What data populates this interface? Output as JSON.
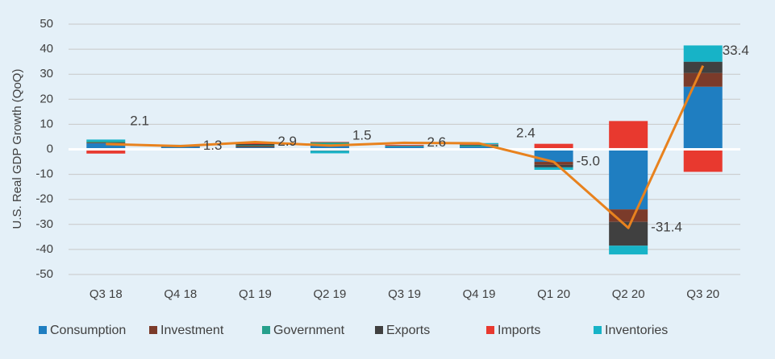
{
  "chart_data": {
    "type": "stacked-bar-line",
    "y_label": "U.S. Real GDP Growth (QoQ)",
    "categories": [
      "Q3 18",
      "Q4 18",
      "Q1 19",
      "Q2 19",
      "Q3 19",
      "Q4 19",
      "Q1 20",
      "Q2 20",
      "Q3 20"
    ],
    "series": [
      {
        "name": "Consumption",
        "color": "#1f7ec1",
        "values": [
          2.4,
          1.0,
          0.8,
          2.0,
          1.1,
          1.1,
          -5.0,
          -24.0,
          25.0
        ]
      },
      {
        "name": "Investment",
        "color": "#7b3b2a",
        "values": [
          0.3,
          0.2,
          0.5,
          -0.5,
          -0.2,
          -0.1,
          -1.2,
          -5.0,
          5.5
        ]
      },
      {
        "name": "Government",
        "color": "#26a08c",
        "values": [
          0.5,
          0.3,
          0.3,
          0.8,
          0.3,
          0.5,
          0.2,
          0.5,
          0.0
        ]
      },
      {
        "name": "Exports",
        "color": "#404040",
        "values": [
          -0.5,
          0.2,
          0.5,
          -0.1,
          0.1,
          0.2,
          -1.0,
          -9.5,
          4.5
        ]
      },
      {
        "name": "Imports",
        "color": "#e8392f",
        "values": [
          -1.2,
          -0.1,
          0.4,
          0.2,
          0.3,
          0.2,
          2.0,
          10.8,
          -9.0
        ]
      },
      {
        "name": "Inventories",
        "color": "#17b3c7",
        "values": [
          0.7,
          0.1,
          0.1,
          -1.0,
          -0.1,
          0.5,
          -1.0,
          -3.5,
          6.5
        ]
      }
    ],
    "line": {
      "color": "#e8821e",
      "values": [
        2.1,
        1.3,
        2.9,
        1.5,
        2.6,
        2.4,
        -5.0,
        -31.4,
        33.4
      ],
      "value_labels": [
        "2.1",
        "1.3",
        "2.9",
        "1.5",
        "2.6",
        "2.4",
        "-5.0",
        "-31.4",
        "33.4"
      ]
    },
    "ylim": [
      -50,
      50
    ],
    "yticks": [
      -50,
      -40,
      -30,
      -20,
      -10,
      0,
      10,
      20,
      30,
      40,
      50
    ],
    "grid": true
  }
}
